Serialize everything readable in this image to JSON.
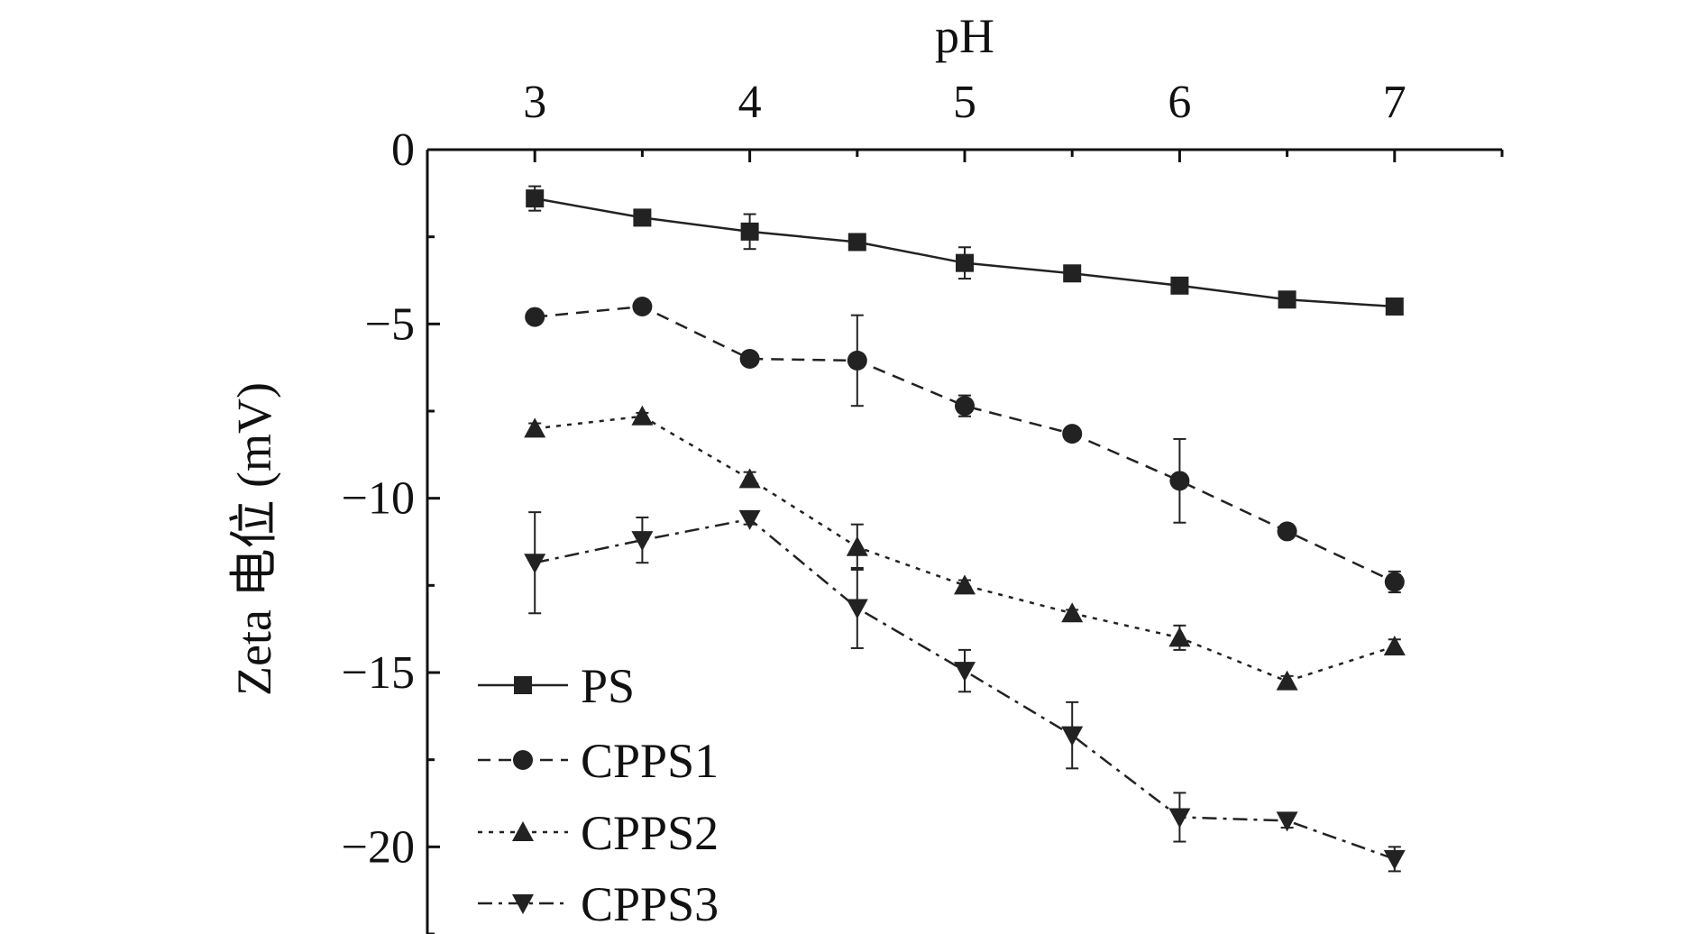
{
  "chart_data": {
    "type": "line",
    "xlabel": "pH",
    "ylabel": "Zeta 电位 (mV)",
    "x_axis_position": "top",
    "xlim": [
      2.5,
      7.5
    ],
    "ylim": [
      -22.5,
      0
    ],
    "x_ticks": [
      3,
      4,
      5,
      6,
      7
    ],
    "x_tick_labels": [
      "3",
      "4",
      "5",
      "6",
      "7"
    ],
    "y_ticks": [
      0,
      -5,
      -10,
      -15,
      -20
    ],
    "y_tick_labels": [
      "0",
      "−5",
      "−10",
      "−15",
      "−20"
    ],
    "grid": false,
    "legend_position": "bottom-left",
    "x": [
      3,
      3.5,
      4,
      4.5,
      5,
      5.5,
      6,
      6.5,
      7
    ],
    "series": [
      {
        "name": "PS",
        "marker": "square",
        "dash": "solid",
        "values": [
          -1.4,
          -1.95,
          -2.35,
          -2.65,
          -3.25,
          -3.55,
          -3.9,
          -4.3,
          -4.5
        ],
        "errors": [
          0.35,
          0.12,
          0.5,
          0.1,
          0.45,
          0.12,
          0.1,
          0.2,
          0.08
        ]
      },
      {
        "name": "CPPS1",
        "marker": "circle",
        "dash": "dashed",
        "values": [
          -4.8,
          -4.5,
          -6.0,
          -6.05,
          -7.35,
          -8.15,
          -9.5,
          -10.95,
          -12.4
        ],
        "errors": [
          0.1,
          0.1,
          0.15,
          1.3,
          0.3,
          0.1,
          1.2,
          0.2,
          0.3
        ]
      },
      {
        "name": "CPPS2",
        "marker": "triangle-up",
        "dash": "dotted",
        "values": [
          -8.0,
          -7.65,
          -9.45,
          -11.4,
          -12.5,
          -13.3,
          -14.0,
          -15.25,
          -14.25
        ],
        "errors": [
          0.15,
          0.1,
          0.2,
          0.65,
          0.15,
          0.1,
          0.35,
          0.15,
          0.2
        ]
      },
      {
        "name": "CPPS3",
        "marker": "triangle-down",
        "dash": "dashdot",
        "values": [
          -11.85,
          -11.2,
          -10.6,
          -13.15,
          -14.95,
          -16.8,
          -19.15,
          -19.25,
          -20.35
        ],
        "errors": [
          1.45,
          0.65,
          0.15,
          1.15,
          0.6,
          0.95,
          0.7,
          0.2,
          0.35
        ]
      }
    ]
  }
}
